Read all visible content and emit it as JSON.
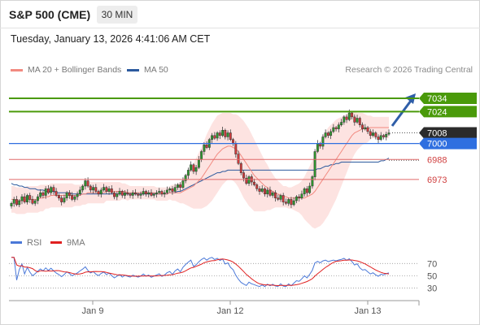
{
  "header": {
    "title": "S&P 500 (CME)",
    "timeframe": "30 MIN",
    "datetime": "Tuesday, January 13, 2026 4:41:06 AM CET"
  },
  "legend": {
    "ma20_label": "MA 20 + Bollinger Bands",
    "ma20_color": "#f28a80",
    "ma50_label": "MA 50",
    "ma50_color": "#2c5a9e",
    "credit": "Research © 2026 Trading Central"
  },
  "chart_data": [
    {
      "type": "candlestick",
      "title": "S&P 500 (CME) 30 MIN",
      "x_ticks": [
        "Jan 9",
        "Jan 12",
        "Jan 13"
      ],
      "ylim": [
        6935,
        7045
      ],
      "current_price": 7008,
      "level_labels": [
        {
          "label": "7034",
          "value": 7034,
          "kind": "resistance",
          "color": "#4a9a0a"
        },
        {
          "label": "7024",
          "value": 7024,
          "kind": "resistance",
          "color": "#4a9a0a"
        },
        {
          "label": "7008",
          "value": 7008,
          "kind": "last-price",
          "color": "#2b2b2b"
        },
        {
          "label": "7000",
          "value": 7000,
          "kind": "pivot",
          "color": "#2f6fe0"
        },
        {
          "label": "6988",
          "value": 6988,
          "kind": "support",
          "color": "#d04040"
        },
        {
          "label": "6973",
          "value": 6973,
          "kind": "support",
          "color": "#d04040"
        }
      ],
      "close": [
        6955,
        6958,
        6954,
        6957,
        6960,
        6956,
        6961,
        6958,
        6955,
        6957,
        6960,
        6963,
        6961,
        6966,
        6963,
        6967,
        6964,
        6961,
        6959,
        6956,
        6959,
        6963,
        6961,
        6958,
        6960,
        6962,
        6965,
        6968,
        6972,
        6968,
        6965,
        6967,
        6964,
        6962,
        6965,
        6967,
        6964,
        6966,
        6963,
        6960,
        6962,
        6964,
        6961,
        6963,
        6962,
        6961,
        6963,
        6962,
        6961,
        6962,
        6964,
        6962,
        6963,
        6961,
        6962,
        6963,
        6964,
        6962,
        6963,
        6965,
        6966,
        6964,
        6967,
        6969,
        6967,
        6972,
        6976,
        6980,
        6984,
        6979,
        6982,
        6988,
        6994,
        6999,
        6997,
        7003,
        7006,
        7004,
        7008,
        7006,
        7010,
        7005,
        7008,
        7003,
        7000,
        6992,
        6985,
        6978,
        6974,
        6970,
        6975,
        6971,
        6969,
        6966,
        6964,
        6966,
        6962,
        6965,
        6961,
        6963,
        6959,
        6958,
        6961,
        6956,
        6955,
        6958,
        6954,
        6957,
        6960,
        6959,
        6962,
        6966,
        6963,
        6968,
        6975,
        6994,
        7000,
        6998,
        7005,
        7008,
        7006,
        7009,
        7012,
        7011,
        7014,
        7016,
        7020,
        7018,
        7023,
        7020,
        7016,
        7019,
        7014,
        7011,
        7012,
        7009,
        7006,
        7008,
        7005,
        7003,
        7006,
        7005,
        7007,
        7008
      ],
      "ma20": [
        6958,
        6958,
        6957,
        6957,
        6957,
        6957,
        6958,
        6958,
        6958,
        6958,
        6958,
        6959,
        6959,
        6960,
        6960,
        6961,
        6961,
        6961,
        6961,
        6961,
        6961,
        6961,
        6961,
        6961,
        6961,
        6961,
        6961,
        6962,
        6962,
        6963,
        6963,
        6963,
        6963,
        6963,
        6963,
        6963,
        6964,
        6964,
        6964,
        6964,
        6964,
        6964,
        6964,
        6964,
        6963,
        6963,
        6963,
        6963,
        6963,
        6963,
        6963,
        6963,
        6963,
        6963,
        6963,
        6962,
        6962,
        6962,
        6962,
        6962,
        6963,
        6963,
        6963,
        6963,
        6963,
        6964,
        6965,
        6966,
        6967,
        6968,
        6970,
        6972,
        6974,
        6977,
        6980,
        6983,
        6986,
        6989,
        6992,
        6994,
        6996,
        6997,
        6998,
        6998,
        6997,
        6996,
        6994,
        6991,
        6988,
        6985,
        6982,
        6979,
        6976,
        6974,
        6972,
        6970,
        6968,
        6967,
        6965,
        6964,
        6963,
        6962,
        6961,
        6960,
        6960,
        6959,
        6959,
        6959,
        6959,
        6959,
        6959,
        6959,
        6960,
        6961,
        6962,
        6964,
        6967,
        6970,
        6973,
        6976,
        6979,
        6982,
        6985,
        6988,
        6991,
        6994,
        6997,
        7000,
        7003,
        7006,
        7008,
        7009,
        7010,
        7011,
        7011,
        7011,
        7012,
        7012,
        7012,
        7012,
        7012,
        7012,
        7012,
        7012
      ],
      "bb_width": [
        10,
        10,
        10,
        10,
        10,
        10,
        10,
        10,
        10,
        10,
        10,
        10,
        10,
        9,
        9,
        9,
        9,
        9,
        9,
        9,
        9,
        9,
        9,
        9,
        8,
        8,
        8,
        8,
        8,
        8,
        8,
        8,
        8,
        8,
        8,
        8,
        7,
        7,
        7,
        7,
        7,
        7,
        6,
        6,
        6,
        5,
        5,
        5,
        5,
        5,
        5,
        5,
        5,
        5,
        5,
        5,
        5,
        5,
        5,
        5,
        5,
        6,
        6,
        7,
        8,
        9,
        11,
        13,
        15,
        17,
        19,
        21,
        23,
        25,
        27,
        28,
        29,
        29,
        29,
        28,
        27,
        26,
        25,
        25,
        25,
        26,
        27,
        28,
        29,
        29,
        29,
        28,
        27,
        25,
        23,
        21,
        19,
        17,
        15,
        13,
        11,
        10,
        9,
        8,
        8,
        8,
        8,
        9,
        10,
        11,
        13,
        16,
        19,
        22,
        25,
        28,
        30,
        32,
        33,
        33,
        33,
        32,
        31,
        30,
        28,
        26,
        24,
        22,
        20,
        18,
        16,
        14,
        13,
        12,
        11,
        10,
        9,
        8,
        8,
        8,
        8,
        8,
        8,
        8
      ],
      "ma50": [
        6970,
        6969,
        6969,
        6968,
        6968,
        6967,
        6967,
        6966,
        6966,
        6966,
        6965,
        6965,
        6965,
        6964,
        6964,
        6964,
        6964,
        6963,
        6963,
        6963,
        6963,
        6963,
        6963,
        6962,
        6962,
        6962,
        6962,
        6962,
        6962,
        6962,
        6962,
        6962,
        6962,
        6962,
        6962,
        6962,
        6962,
        6962,
        6962,
        6962,
        6962,
        6962,
        6962,
        6962,
        6962,
        6962,
        6962,
        6962,
        6962,
        6962,
        6962,
        6962,
        6962,
        6962,
        6962,
        6962,
        6962,
        6962,
        6962,
        6962,
        6963,
        6963,
        6963,
        6964,
        6964,
        6965,
        6966,
        6967,
        6968,
        6969,
        6970,
        6971,
        6972,
        6973,
        6974,
        6975,
        6976,
        6977,
        6978,
        6978,
        6979,
        6979,
        6980,
        6980,
        6980,
        6980,
        6980,
        6980,
        6980,
        6980,
        6980,
        6980,
        6980,
        6980,
        6980,
        6980,
        6980,
        6980,
        6980,
        6980,
        6980,
        6980,
        6980,
        6980,
        6980,
        6980,
        6980,
        6980,
        6980,
        6980,
        6980,
        6980,
        6980,
        6980,
        6980,
        6980,
        6981,
        6981,
        6982,
        6983,
        6983,
        6984,
        6984,
        6985,
        6985,
        6986,
        6986,
        6986,
        6986,
        6986,
        6986,
        6986,
        6986,
        6986,
        6986,
        6986,
        6986,
        6986,
        6986,
        6986,
        6987,
        6987,
        6988,
        6989
      ]
    },
    {
      "type": "line",
      "title": "RSI",
      "series": [
        {
          "name": "RSI",
          "color": "#4a78d8"
        },
        {
          "name": "9MA",
          "color": "#e02020"
        }
      ],
      "y_ticks": [
        70,
        50,
        30
      ],
      "ylim": [
        20,
        85
      ]
    }
  ]
}
